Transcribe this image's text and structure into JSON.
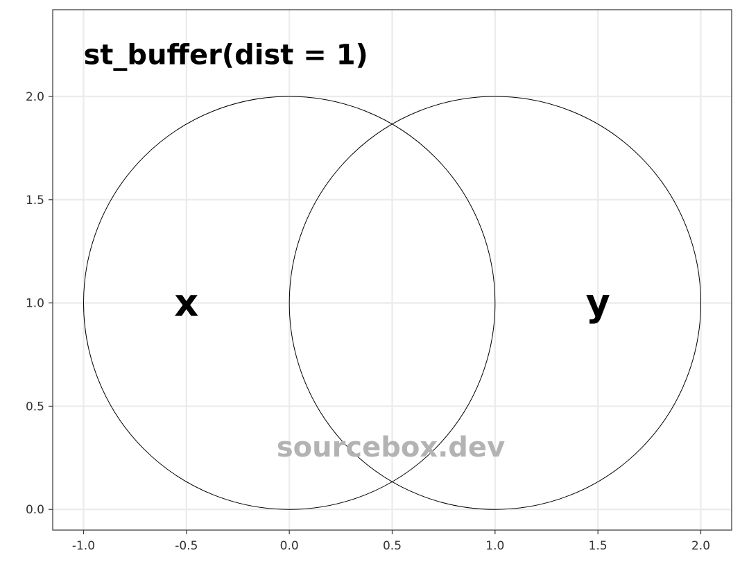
{
  "chart_data": {
    "type": "scatter",
    "title": "st_buffer(dist = 1)",
    "xlim": [
      -1.15,
      2.15
    ],
    "ylim": [
      -0.1,
      2.42
    ],
    "x_ticks": [
      -1.0,
      -0.5,
      0.0,
      0.5,
      1.0,
      1.5,
      2.0
    ],
    "x_tick_labels": [
      "-1.0",
      "-0.5",
      "0.0",
      "0.5",
      "1.0",
      "1.5",
      "2.0"
    ],
    "y_ticks": [
      0.0,
      0.5,
      1.0,
      1.5,
      2.0
    ],
    "y_tick_labels": [
      "0.0",
      "0.5",
      "1.0",
      "1.5",
      "2.0"
    ],
    "grid": true,
    "shapes": [
      {
        "kind": "circle",
        "cx": 0.0,
        "cy": 1.0,
        "r": 1.0,
        "stroke": "#000000",
        "fill": "none"
      },
      {
        "kind": "circle",
        "cx": 1.0,
        "cy": 1.0,
        "r": 1.0,
        "stroke": "#000000",
        "fill": "none"
      }
    ],
    "labels": [
      {
        "text": "x",
        "x": -0.5,
        "y": 1.0
      },
      {
        "text": "y",
        "x": 1.5,
        "y": 1.0
      }
    ],
    "watermark": {
      "text": "sourcebox.dev",
      "x": 0.5,
      "y": 0.3,
      "color": "#b3b3b3"
    },
    "colors": {
      "grid": "#ebebeb",
      "panel_border": "#333333",
      "tick": "#333333",
      "circle_stroke": "#000000"
    }
  }
}
